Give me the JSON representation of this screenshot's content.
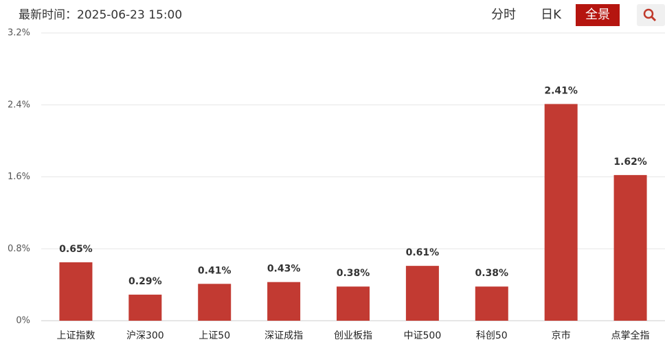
{
  "header": {
    "timestamp": "最新时间：2025-06-23 15:00",
    "tabs": [
      "分时",
      "日K",
      "全景"
    ]
  },
  "chart_data": {
    "type": "bar",
    "categories": [
      "上证指数",
      "沪深300",
      "上证50",
      "深证成指",
      "创业板指",
      "中证500",
      "科创50",
      "京市",
      "点掌全指"
    ],
    "values": [
      0.65,
      0.29,
      0.41,
      0.43,
      0.38,
      0.61,
      0.38,
      2.41,
      1.62
    ],
    "value_labels": [
      "0.65%",
      "0.29%",
      "0.41%",
      "0.43%",
      "0.38%",
      "0.61%",
      "0.38%",
      "2.41%",
      "1.62%"
    ],
    "color": "#c23a32",
    "ylim": [
      0,
      3.2
    ],
    "yticks": [
      {
        "value": 0,
        "label": "0%"
      },
      {
        "value": 0.8,
        "label": "0.8%"
      },
      {
        "value": 1.6,
        "label": "1.6%"
      },
      {
        "value": 2.4,
        "label": "2.4%"
      },
      {
        "value": 3.2,
        "label": "3.2%"
      }
    ],
    "grid": true
  }
}
